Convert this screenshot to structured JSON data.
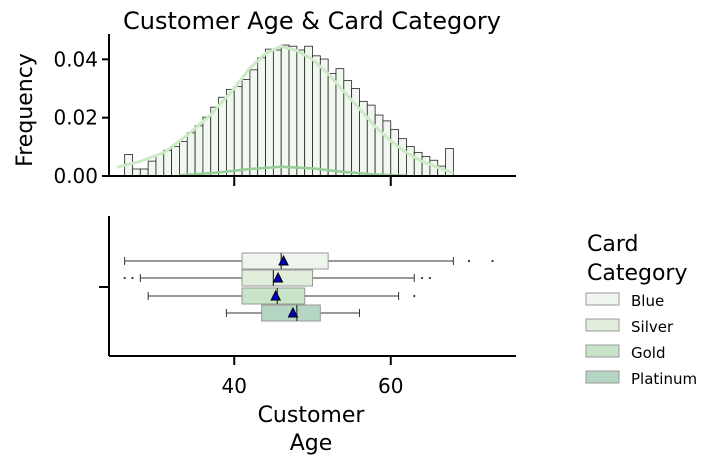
{
  "chart_data": {
    "type": "histogram+boxplot",
    "title": "Customer Age & Card Category",
    "xlabel_line1": "Customer",
    "xlabel_line2": "Age",
    "ylabel": "Frequency",
    "xlim": [
      24,
      76
    ],
    "ylim": [
      0,
      0.048
    ],
    "x_ticks": [
      40,
      60
    ],
    "y_ticks": [
      0.0,
      0.02,
      0.04
    ],
    "y_tick_labels": [
      "0.00",
      "0.02",
      "0.04"
    ],
    "hist_bins": {
      "start": 26,
      "width": 1,
      "freq": [
        0.0074,
        0.0024,
        0.0024,
        0.0051,
        0.0074,
        0.0088,
        0.0101,
        0.0118,
        0.0148,
        0.0172,
        0.0202,
        0.0236,
        0.027,
        0.0297,
        0.0307,
        0.0331,
        0.0364,
        0.0405,
        0.0435,
        0.0432,
        0.0449,
        0.0445,
        0.0432,
        0.0445,
        0.0412,
        0.0401,
        0.0351,
        0.0368,
        0.0327,
        0.03,
        0.0256,
        0.0243,
        0.0209,
        0.0189,
        0.0159,
        0.0128,
        0.0101,
        0.0081,
        0.0067,
        0.0054,
        0.0034,
        0.0094
      ]
    },
    "kde_blue": [
      [
        25,
        0.003
      ],
      [
        28,
        0.005
      ],
      [
        31,
        0.008
      ],
      [
        34,
        0.014
      ],
      [
        37,
        0.021
      ],
      [
        40,
        0.03
      ],
      [
        42,
        0.037
      ],
      [
        44,
        0.042
      ],
      [
        46,
        0.0445
      ],
      [
        48,
        0.043
      ],
      [
        50,
        0.04
      ],
      [
        52,
        0.035
      ],
      [
        54,
        0.029
      ],
      [
        56,
        0.023
      ],
      [
        58,
        0.017
      ],
      [
        60,
        0.012
      ],
      [
        62,
        0.008
      ],
      [
        64,
        0.005
      ],
      [
        66,
        0.003
      ],
      [
        68,
        0.001
      ]
    ],
    "kde_gold": [
      [
        33,
        0.0002
      ],
      [
        38,
        0.0012
      ],
      [
        42,
        0.0024
      ],
      [
        46,
        0.0032
      ],
      [
        50,
        0.0026
      ],
      [
        54,
        0.0014
      ],
      [
        58,
        0.0005
      ],
      [
        62,
        0.0001
      ]
    ],
    "boxes": [
      {
        "category": "Blue",
        "whisker_low": 26,
        "q1": 41,
        "median": 46,
        "q3": 52,
        "whisker_high": 68,
        "mean": 46.3,
        "outliers": [
          70,
          73
        ]
      },
      {
        "category": "Silver",
        "whisker_low": 28,
        "q1": 41,
        "median": 45,
        "q3": 50,
        "whisker_high": 63,
        "mean": 45.6,
        "outliers": [
          26,
          27,
          64,
          65
        ]
      },
      {
        "category": "Gold",
        "whisker_low": 29,
        "q1": 41,
        "median": 45.5,
        "q3": 49,
        "whisker_high": 61,
        "mean": 45.3,
        "outliers": [
          63
        ]
      },
      {
        "category": "Platinum",
        "whisker_low": 39,
        "q1": 43.5,
        "median": 48,
        "q3": 51,
        "whisker_high": 56,
        "mean": 47.5,
        "outliers": []
      }
    ],
    "legend": {
      "title_line1": "Card",
      "title_line2": "Category",
      "entries": [
        "Blue",
        "Silver",
        "Gold",
        "Platinum"
      ],
      "placement": "right"
    },
    "colors": {
      "Blue": "#eef5ec",
      "Silver": "#e0eedb",
      "Gold": "#c8e4c8",
      "Platinum": "#b4d6c2",
      "hist_fill": "#f0f8ef",
      "kde_blue": "#cdeac6",
      "kde_gold": "#95cf95",
      "mean_marker": "#0000cc"
    }
  }
}
